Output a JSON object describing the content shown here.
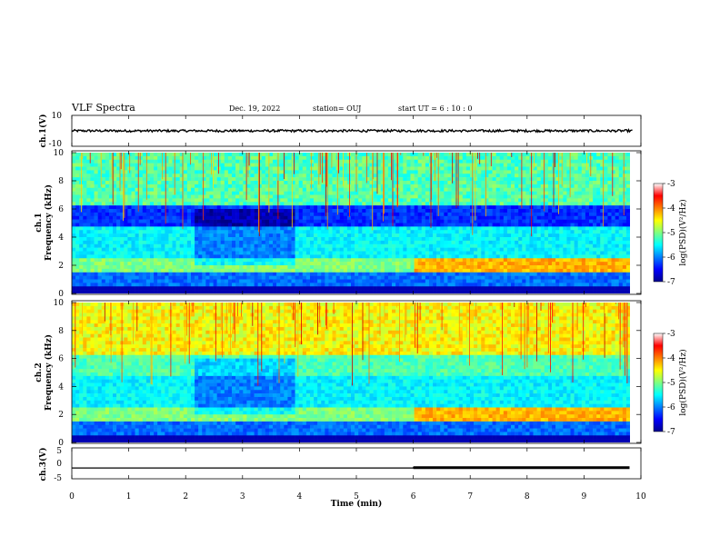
{
  "header": {
    "title": "VLF Spectra",
    "date": "Dec. 19, 2022",
    "station": "station= OUJ",
    "start": "start  UT =  6 : 10 : 0"
  },
  "chart_data": [
    {
      "type": "line",
      "panel": "ch1",
      "ylabel": "ch.1(V)",
      "ylim": [
        -10,
        10
      ],
      "yticks": [
        "10",
        "-10"
      ],
      "xlim": [
        0,
        10
      ],
      "baseline": 0,
      "noise_amplitude": 1.5
    },
    {
      "type": "heatmap",
      "panel": "spec1",
      "ylabel_line1": "ch.1",
      "ylabel_line2": "Frequency  (kHz)",
      "ylim": [
        0,
        10
      ],
      "yticks": [
        "0",
        "2",
        "4",
        "6",
        "8",
        "10"
      ],
      "xlim": [
        0,
        10
      ],
      "colorbar": {
        "label": "log(PSD)(V²/Hz)",
        "ticks": [
          "-3",
          "-4",
          "-5",
          "-6",
          "-7"
        ],
        "range": [
          -7,
          -3
        ]
      }
    },
    {
      "type": "heatmap",
      "panel": "spec2",
      "ylabel_line1": "ch.2",
      "ylabel_line2": "Frequency  (kHz)",
      "ylim": [
        0,
        10
      ],
      "yticks": [
        "0",
        "2",
        "4",
        "6",
        "8",
        "10"
      ],
      "xlim": [
        0,
        10
      ],
      "colorbar": {
        "label": "log(PSD)(V²/Hz)",
        "ticks": [
          "-3",
          "-4",
          "-5",
          "-6",
          "-7"
        ],
        "range": [
          -7,
          -3
        ]
      }
    },
    {
      "type": "line",
      "panel": "ch3",
      "ylabel": "ch.3(V)",
      "ylim": [
        -5,
        5
      ],
      "yticks": [
        "5",
        "0",
        "-5"
      ],
      "xlim": [
        0,
        10
      ],
      "x": [
        0,
        6.0,
        6.0,
        9.8
      ],
      "y": [
        -1.5,
        -1.5,
        -1.4,
        -1.4
      ],
      "xlabel": "Time  (min)",
      "xticks": [
        "0",
        "1",
        "2",
        "3",
        "4",
        "5",
        "6",
        "7",
        "8",
        "9",
        "10"
      ]
    }
  ]
}
